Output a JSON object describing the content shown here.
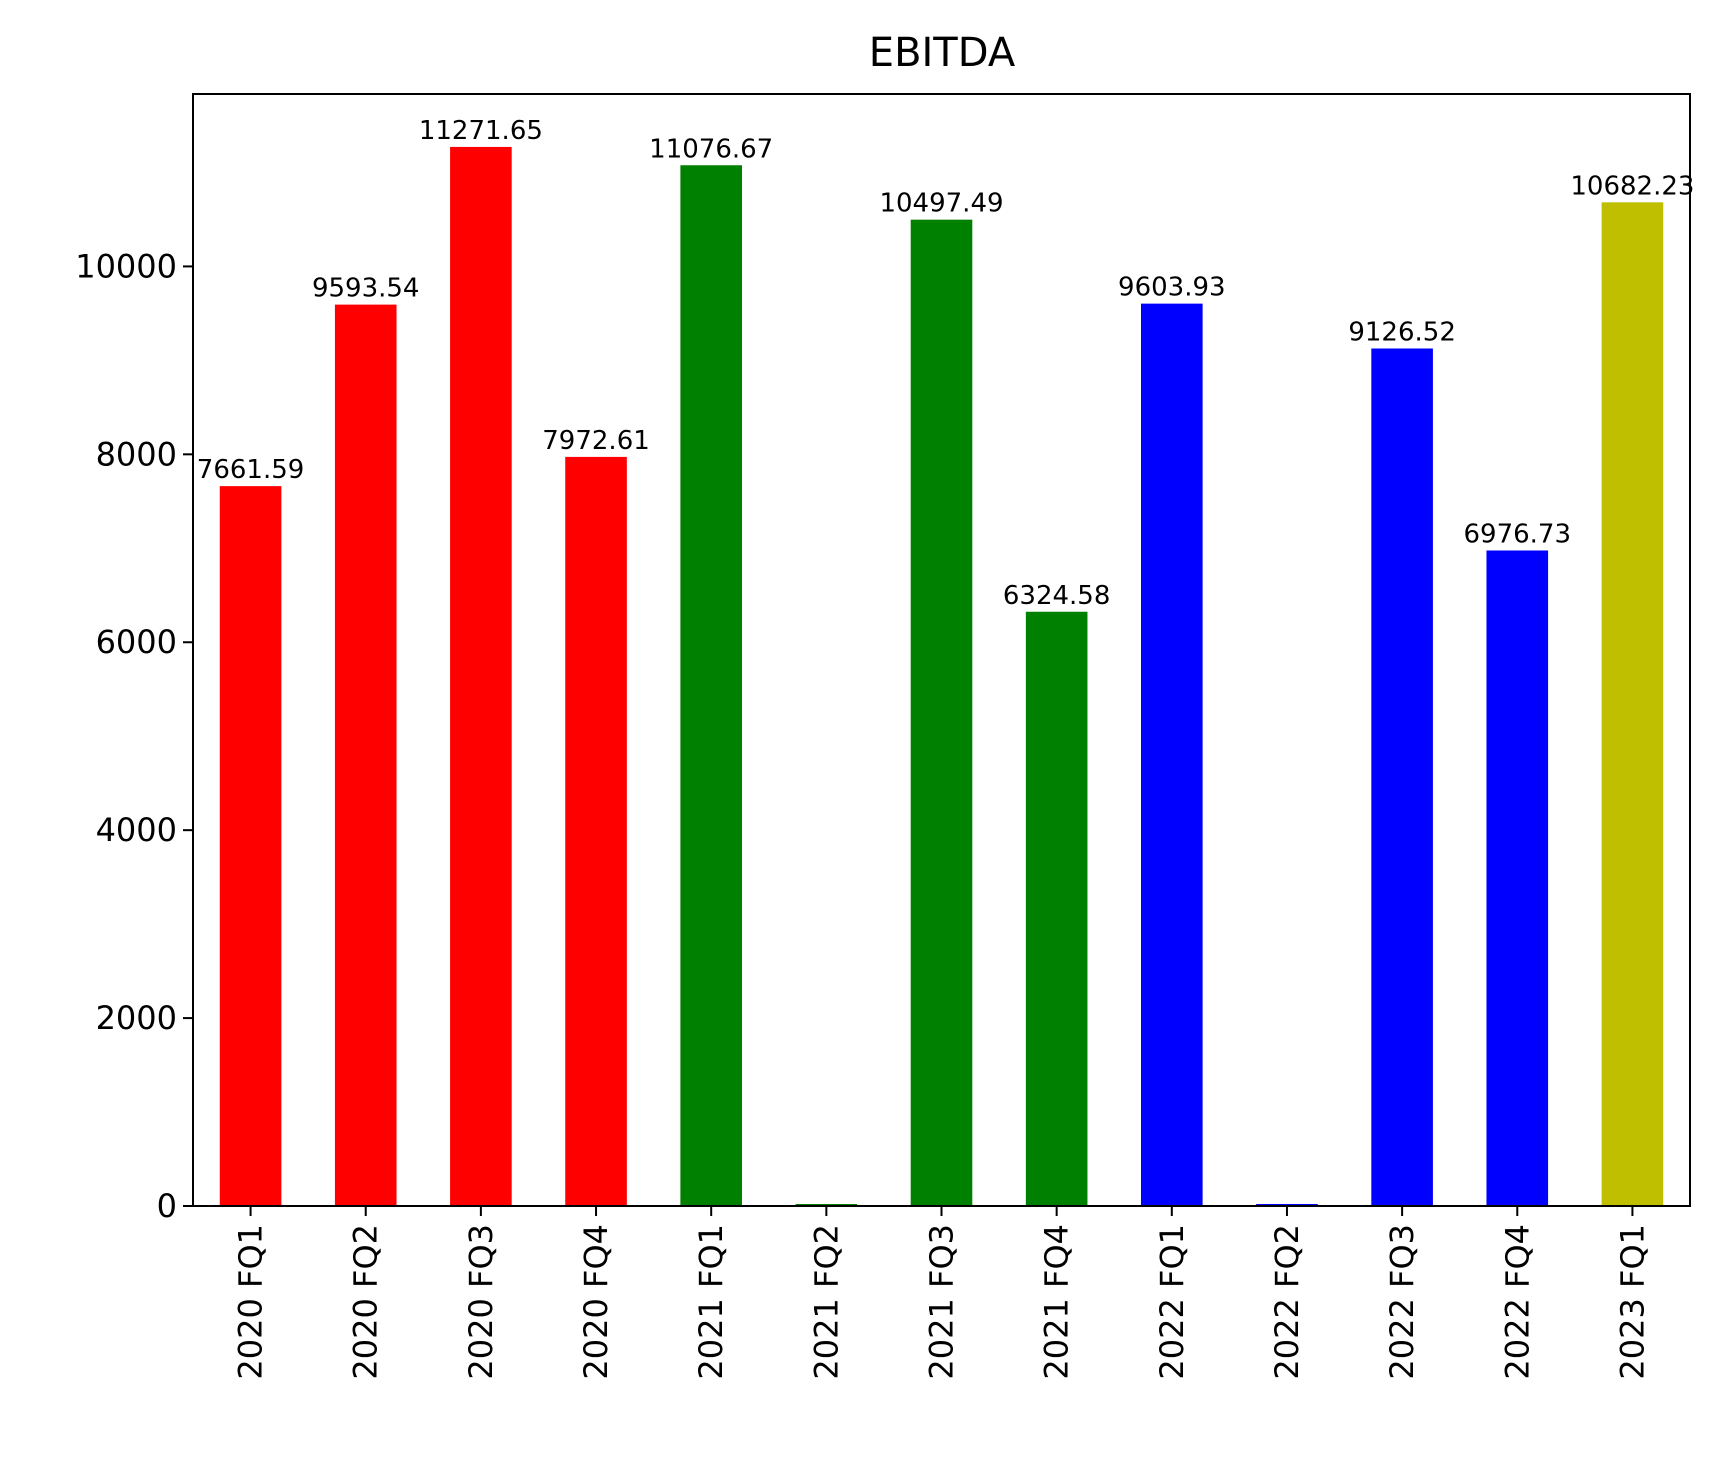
{
  "chart_data": {
    "type": "bar",
    "title": "EBITDA",
    "xlabel": "",
    "ylabel": "",
    "categories": [
      "2020 FQ1",
      "2020 FQ2",
      "2020 FQ3",
      "2020 FQ4",
      "2021 FQ1",
      "2021 FQ2",
      "2021 FQ3",
      "2021 FQ4",
      "2022 FQ1",
      "2022 FQ2",
      "2022 FQ3",
      "2022 FQ4",
      "2023 FQ1"
    ],
    "values": [
      7661.59,
      9593.54,
      11271.65,
      7972.61,
      11076.67,
      0,
      10497.49,
      6324.58,
      9603.93,
      0,
      9126.52,
      6976.73,
      10682.23
    ],
    "value_labels": [
      "7661.59",
      "9593.54",
      "11271.65",
      "7972.61",
      "11076.67",
      "",
      "10497.49",
      "6324.58",
      "9603.93",
      "",
      "9126.52",
      "6976.73",
      "10682.23"
    ],
    "bar_colors": [
      "#ff0000",
      "#ff0000",
      "#ff0000",
      "#ff0000",
      "#008000",
      "#008000",
      "#008000",
      "#008000",
      "#0000ff",
      "#0000ff",
      "#0000ff",
      "#0000ff",
      "#bfbf00"
    ],
    "yticks": [
      0,
      2000,
      4000,
      6000,
      8000,
      10000
    ],
    "ylim": [
      0,
      11835
    ],
    "grid": false,
    "legend": "none"
  }
}
